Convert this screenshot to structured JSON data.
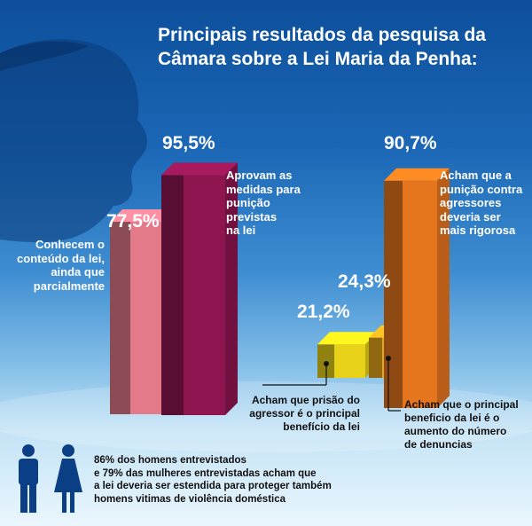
{
  "title": "Principais resultados da pesquisa da Câmara sobre a Lei Maria da Penha:",
  "chart_data": {
    "type": "bar",
    "groups": [
      {
        "bars": [
          {
            "value": 77.5,
            "label": "77,5%",
            "description": "Conhecem o conteúdo da lei, ainda que parcialmente",
            "color": "#e27a8a"
          },
          {
            "value": 95.5,
            "label": "95,5%",
            "description": "Aprovam as medidas para punição previstas na lei",
            "color": "#8e1550"
          }
        ]
      },
      {
        "bars": [
          {
            "value": 21.2,
            "label": "21,2%",
            "description": "Acham que prisão do agressor é o principal benefício da lei",
            "color": "#e8d119"
          },
          {
            "value": 24.3,
            "label": "24,3%",
            "description": "Acham que o principal benefício da lei é o aumento do número de denuncias",
            "color": "#e9a71c"
          },
          {
            "value": 90.7,
            "label": "90,7%",
            "description": "Acham que a punição contra agressores deveria ser mais rigorosa",
            "color": "#e6761e"
          }
        ]
      }
    ]
  },
  "labels": {
    "b1": [
      "Conhecem o",
      "conteúdo da lei,",
      "ainda que",
      "parcialmente"
    ],
    "b2": [
      "Aprovam as",
      "medidas para",
      "punição",
      "previstas",
      "na lei"
    ],
    "b3": [
      "Acham que prisão do",
      "agressor é o principal",
      "benefício da lei"
    ],
    "b4": [
      "Acham que o principal",
      "beneficio da lei é o",
      "aumento do número",
      "de denuncias"
    ],
    "b5": [
      "Acham que a",
      "punição contra",
      "agressores",
      "deveria ser",
      "mais rigorosa"
    ]
  },
  "footer": [
    "86% dos homens entrevistados",
    "e 79% das mulheres entrevistadas acham que",
    "a lei deveria ser estendida para proteger também",
    "homens vitimas de violência doméstica"
  ],
  "icons": [
    "man-icon",
    "woman-icon"
  ]
}
